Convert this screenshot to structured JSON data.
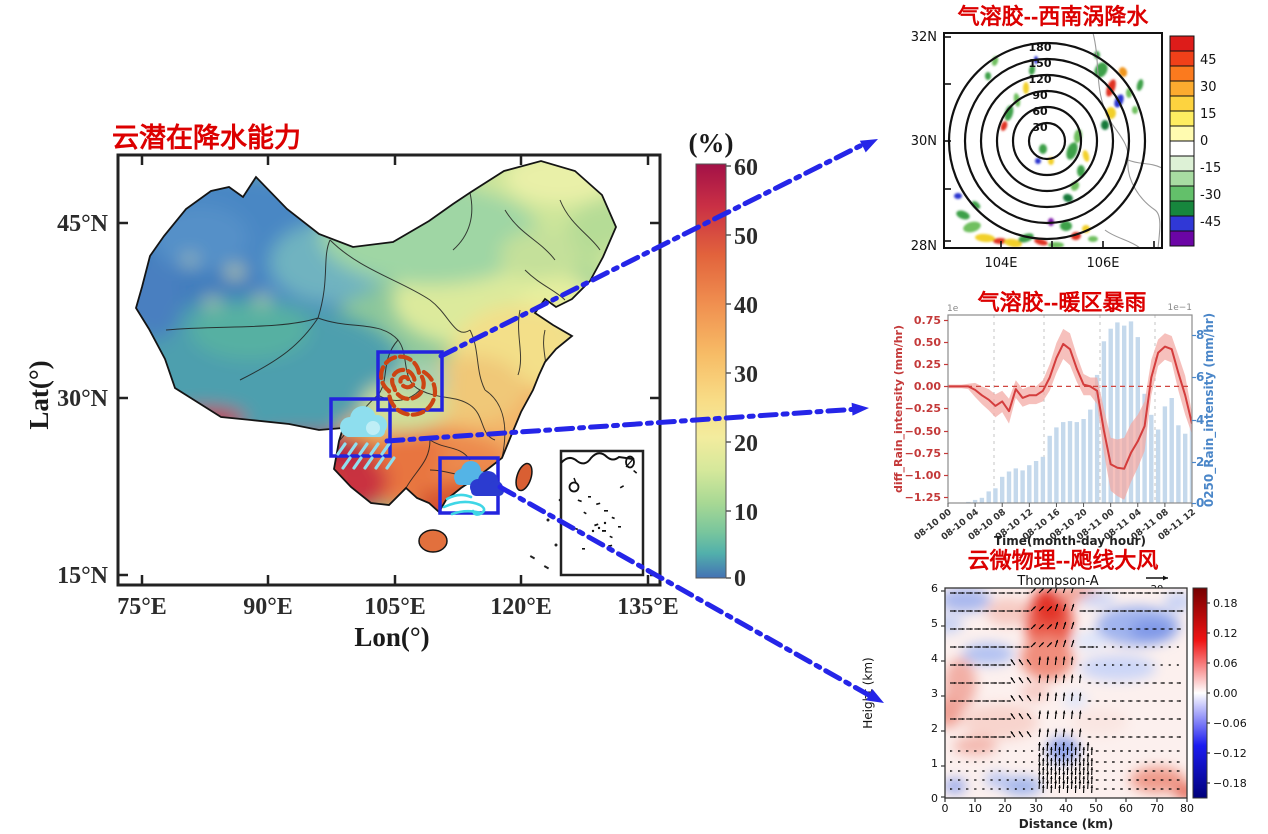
{
  "colors": {
    "title_red": "#dc0000",
    "arrow_blue": "#2525e8",
    "box_blue": "#2324de",
    "diff_line_red": "#d43d3d",
    "rain_bar_blue": "#c5d9ec",
    "vortex_spiral_orange": "#cc4414",
    "rain_cloud_cyan": "#8edeee",
    "wind_cloud_royal": "#2b3bd0",
    "wind_swirl_cyan": "#3fd6e6"
  },
  "main_map": {
    "title": "云潜在降水能力",
    "xlabel": "Lon(°)",
    "ylabel": "Lat(°)",
    "x_ticks": [
      "75°E",
      "90°E",
      "105°E",
      "120°E",
      "135°E"
    ],
    "y_ticks": [
      "45°N",
      "30°N",
      "15°N"
    ],
    "colorbar_title": "(%)",
    "colorbar_ticks": [
      "60",
      "50",
      "40",
      "30",
      "20",
      "10",
      "0"
    ],
    "region_boxes": [
      {
        "id": "southwest-vortex",
        "icon": "vortex-spiral-icon"
      },
      {
        "id": "warm-sector-rain",
        "icon": "rain-cloud-icon"
      },
      {
        "id": "squall-line-wind",
        "icon": "wind-clouds-icon"
      }
    ]
  },
  "panel_vortex": {
    "title": "气溶胶--西南涡降水",
    "y_ticks": [
      "32N",
      "30N",
      "28N"
    ],
    "x_ticks": [
      "104E",
      "106E"
    ],
    "contour_labels": [
      "180",
      "150",
      "120",
      "90",
      "60",
      "30"
    ],
    "colorbar_ticks": [
      "45",
      "30",
      "15",
      "0",
      "-15",
      "-30",
      "-45"
    ]
  },
  "panel_warm_rain": {
    "title": "气溶胶--暖区暴雨",
    "left_ylabel": "diff_Rain_intensity (mm/hr)",
    "right_ylabel": "0250_Rain_intensity (mm/hr)",
    "xlabel": "Time(month-day hour)",
    "left_ticks": [
      "0.75",
      "0.50",
      "0.25",
      "0.00",
      "−0.25",
      "−0.50",
      "−0.75",
      "−1.00",
      "−1.25"
    ],
    "right_ticks": [
      "8",
      "6",
      "4",
      "2",
      "0"
    ],
    "scale_left": "1e",
    "scale_right": "1e−1"
  },
  "panel_squall": {
    "title": "云微物理--飑线大风",
    "subtitle": "Thompson-A",
    "quiver_key": "20",
    "ylabel": "Height (km)",
    "xlabel": "Distance (km)",
    "y_ticks": [
      "6",
      "5",
      "4",
      "3",
      "2",
      "1",
      "0"
    ],
    "x_ticks": [
      "0",
      "10",
      "20",
      "30",
      "40",
      "50",
      "60",
      "70",
      "80"
    ],
    "colorbar_ticks": [
      "0.18",
      "0.12",
      "0.06",
      "0.00",
      "−0.06",
      "−0.12",
      "−0.18"
    ]
  },
  "chart_data": [
    {
      "id": "china_cloud_potential",
      "type": "heatmap",
      "title": "云潜在降水能力",
      "xlabel": "Lon(°)",
      "ylabel": "Lat(°)",
      "xlim_deg_E": [
        75,
        135
      ],
      "ylim_deg_N": [
        15,
        50
      ],
      "x_ticks": [
        "75°E",
        "90°E",
        "105°E",
        "120°E",
        "135°E"
      ],
      "y_ticks": [
        "45°N",
        "30°N",
        "15°N"
      ],
      "colorbar": {
        "title": "(%)",
        "min": 0,
        "max": 60,
        "ticks": [
          0,
          10,
          20,
          30,
          40,
          50,
          60
        ]
      },
      "pattern_summary": "0–15% over northwest (Xinjiang/Tibet), 20–35% over north & northeast China, 40–60% over south and southeast coast with crimson maxima along the Himalayas, Yunnan and the south coast",
      "highlight_boxes": [
        "southwest vortex region (Sichuan)",
        "warm-sector rainstorm region (Yunnan–Guizhou)",
        "squall-line gale region (Guangdong coast)"
      ]
    },
    {
      "id": "aerosol_sw_vortex_precip",
      "type": "heatmap",
      "title": "气溶胶--西南涡降水",
      "x_ticks": [
        "104E",
        "106E"
      ],
      "y_ticks": [
        "32N",
        "30N",
        "28N"
      ],
      "contours": {
        "levels": [
          30,
          60,
          90,
          120,
          150,
          180
        ],
        "shape": "concentric circles centered near 105.1E, 30N"
      },
      "colorbar": {
        "ticks": [
          45,
          30,
          15,
          0,
          -15,
          -30,
          -45
        ],
        "palette": "red-orange-yellow-white-green-blue-purple"
      },
      "pattern_summary": "scattered positive (yellow/red) and negative (green/blue) precipitation anomalies around the vortex rings"
    },
    {
      "id": "aerosol_warm_sector_rain",
      "type": "line+bar",
      "title": "气溶胶--暖区暴雨",
      "xlabel": "Time(month-day hour)",
      "x_tick_labels": [
        "08-10 00",
        "08-10 04",
        "08-10 08",
        "08-10 12",
        "08-10 16",
        "08-10 20",
        "08-11 00",
        "08-11 04",
        "08-11 08",
        "08-11 12"
      ],
      "hours_span": 36,
      "left_ylim": [
        -1.35,
        0.85
      ],
      "right_ylim": [
        0,
        9
      ],
      "right_scale": "1e-1",
      "zero_line": true,
      "series": [
        {
          "name": "diff_Rain_intensity (mm/hr)",
          "axis": "left",
          "color": "#d43d3d",
          "style": "line+band",
          "values": [
            0.0,
            0.0,
            0.0,
            0.0,
            -0.04,
            -0.1,
            -0.15,
            -0.22,
            -0.17,
            -0.28,
            -0.03,
            -0.13,
            -0.1,
            -0.1,
            -0.05,
            0.1,
            0.32,
            0.48,
            0.42,
            0.2,
            0.02,
            0.0,
            -0.05,
            -0.5,
            -0.88,
            -0.92,
            -0.93,
            -0.75,
            -0.62,
            -0.45,
            0.1,
            0.38,
            0.45,
            0.42,
            0.15,
            -0.1,
            -0.42
          ],
          "band_halfwidth": [
            0.02,
            0.02,
            0.02,
            0.03,
            0.08,
            0.1,
            0.12,
            0.13,
            0.12,
            0.14,
            0.1,
            0.1,
            0.1,
            0.1,
            0.12,
            0.15,
            0.17,
            0.17,
            0.18,
            0.15,
            0.12,
            0.1,
            0.15,
            0.25,
            0.3,
            0.32,
            0.35,
            0.33,
            0.3,
            0.28,
            0.2,
            0.15,
            0.15,
            0.15,
            0.2,
            0.22,
            0.12
          ]
        },
        {
          "name": "0250_Rain_intensity (mm/hr)",
          "axis": "right",
          "color": "#c5d9ec",
          "style": "bar",
          "values": [
            0,
            0,
            0,
            0.05,
            0.15,
            0.25,
            0.55,
            0.7,
            1.25,
            1.5,
            1.65,
            1.55,
            1.8,
            2.0,
            2.2,
            3.2,
            3.6,
            3.85,
            3.9,
            3.85,
            4.0,
            4.45,
            6.1,
            7.7,
            8.3,
            8.6,
            8.45,
            8.65,
            7.9,
            5.2,
            4.2,
            3.5,
            4.6,
            5.0,
            3.7,
            3.3,
            4.0
          ]
        }
      ]
    },
    {
      "id": "cloud_microphysics_squall",
      "type": "heatmap+quiver",
      "title": "云微物理--飑线大风",
      "subtitle": "Thompson-A",
      "quiver_key_value": 20,
      "xlabel": "Distance (km)",
      "ylabel": "Height (km)",
      "xlim": [
        0,
        80
      ],
      "ylim": [
        0,
        6
      ],
      "x_ticks": [
        0,
        10,
        20,
        30,
        40,
        50,
        60,
        70,
        80
      ],
      "y_ticks": [
        0,
        1,
        2,
        3,
        4,
        5,
        6
      ],
      "colorbar": {
        "ticks": [
          0.18,
          0.12,
          0.06,
          0.0,
          -0.06,
          -0.12,
          -0.18
        ],
        "palette": "seismic (dark red → white → dark blue)"
      },
      "pattern_summary": "positive (red) anomaly column near x≈30–40 km aloft, negative (blue) lobes upper-left and mid-right, mostly westerly arrows with strong upward convergence near x≈35–45 km at low levels"
    }
  ]
}
